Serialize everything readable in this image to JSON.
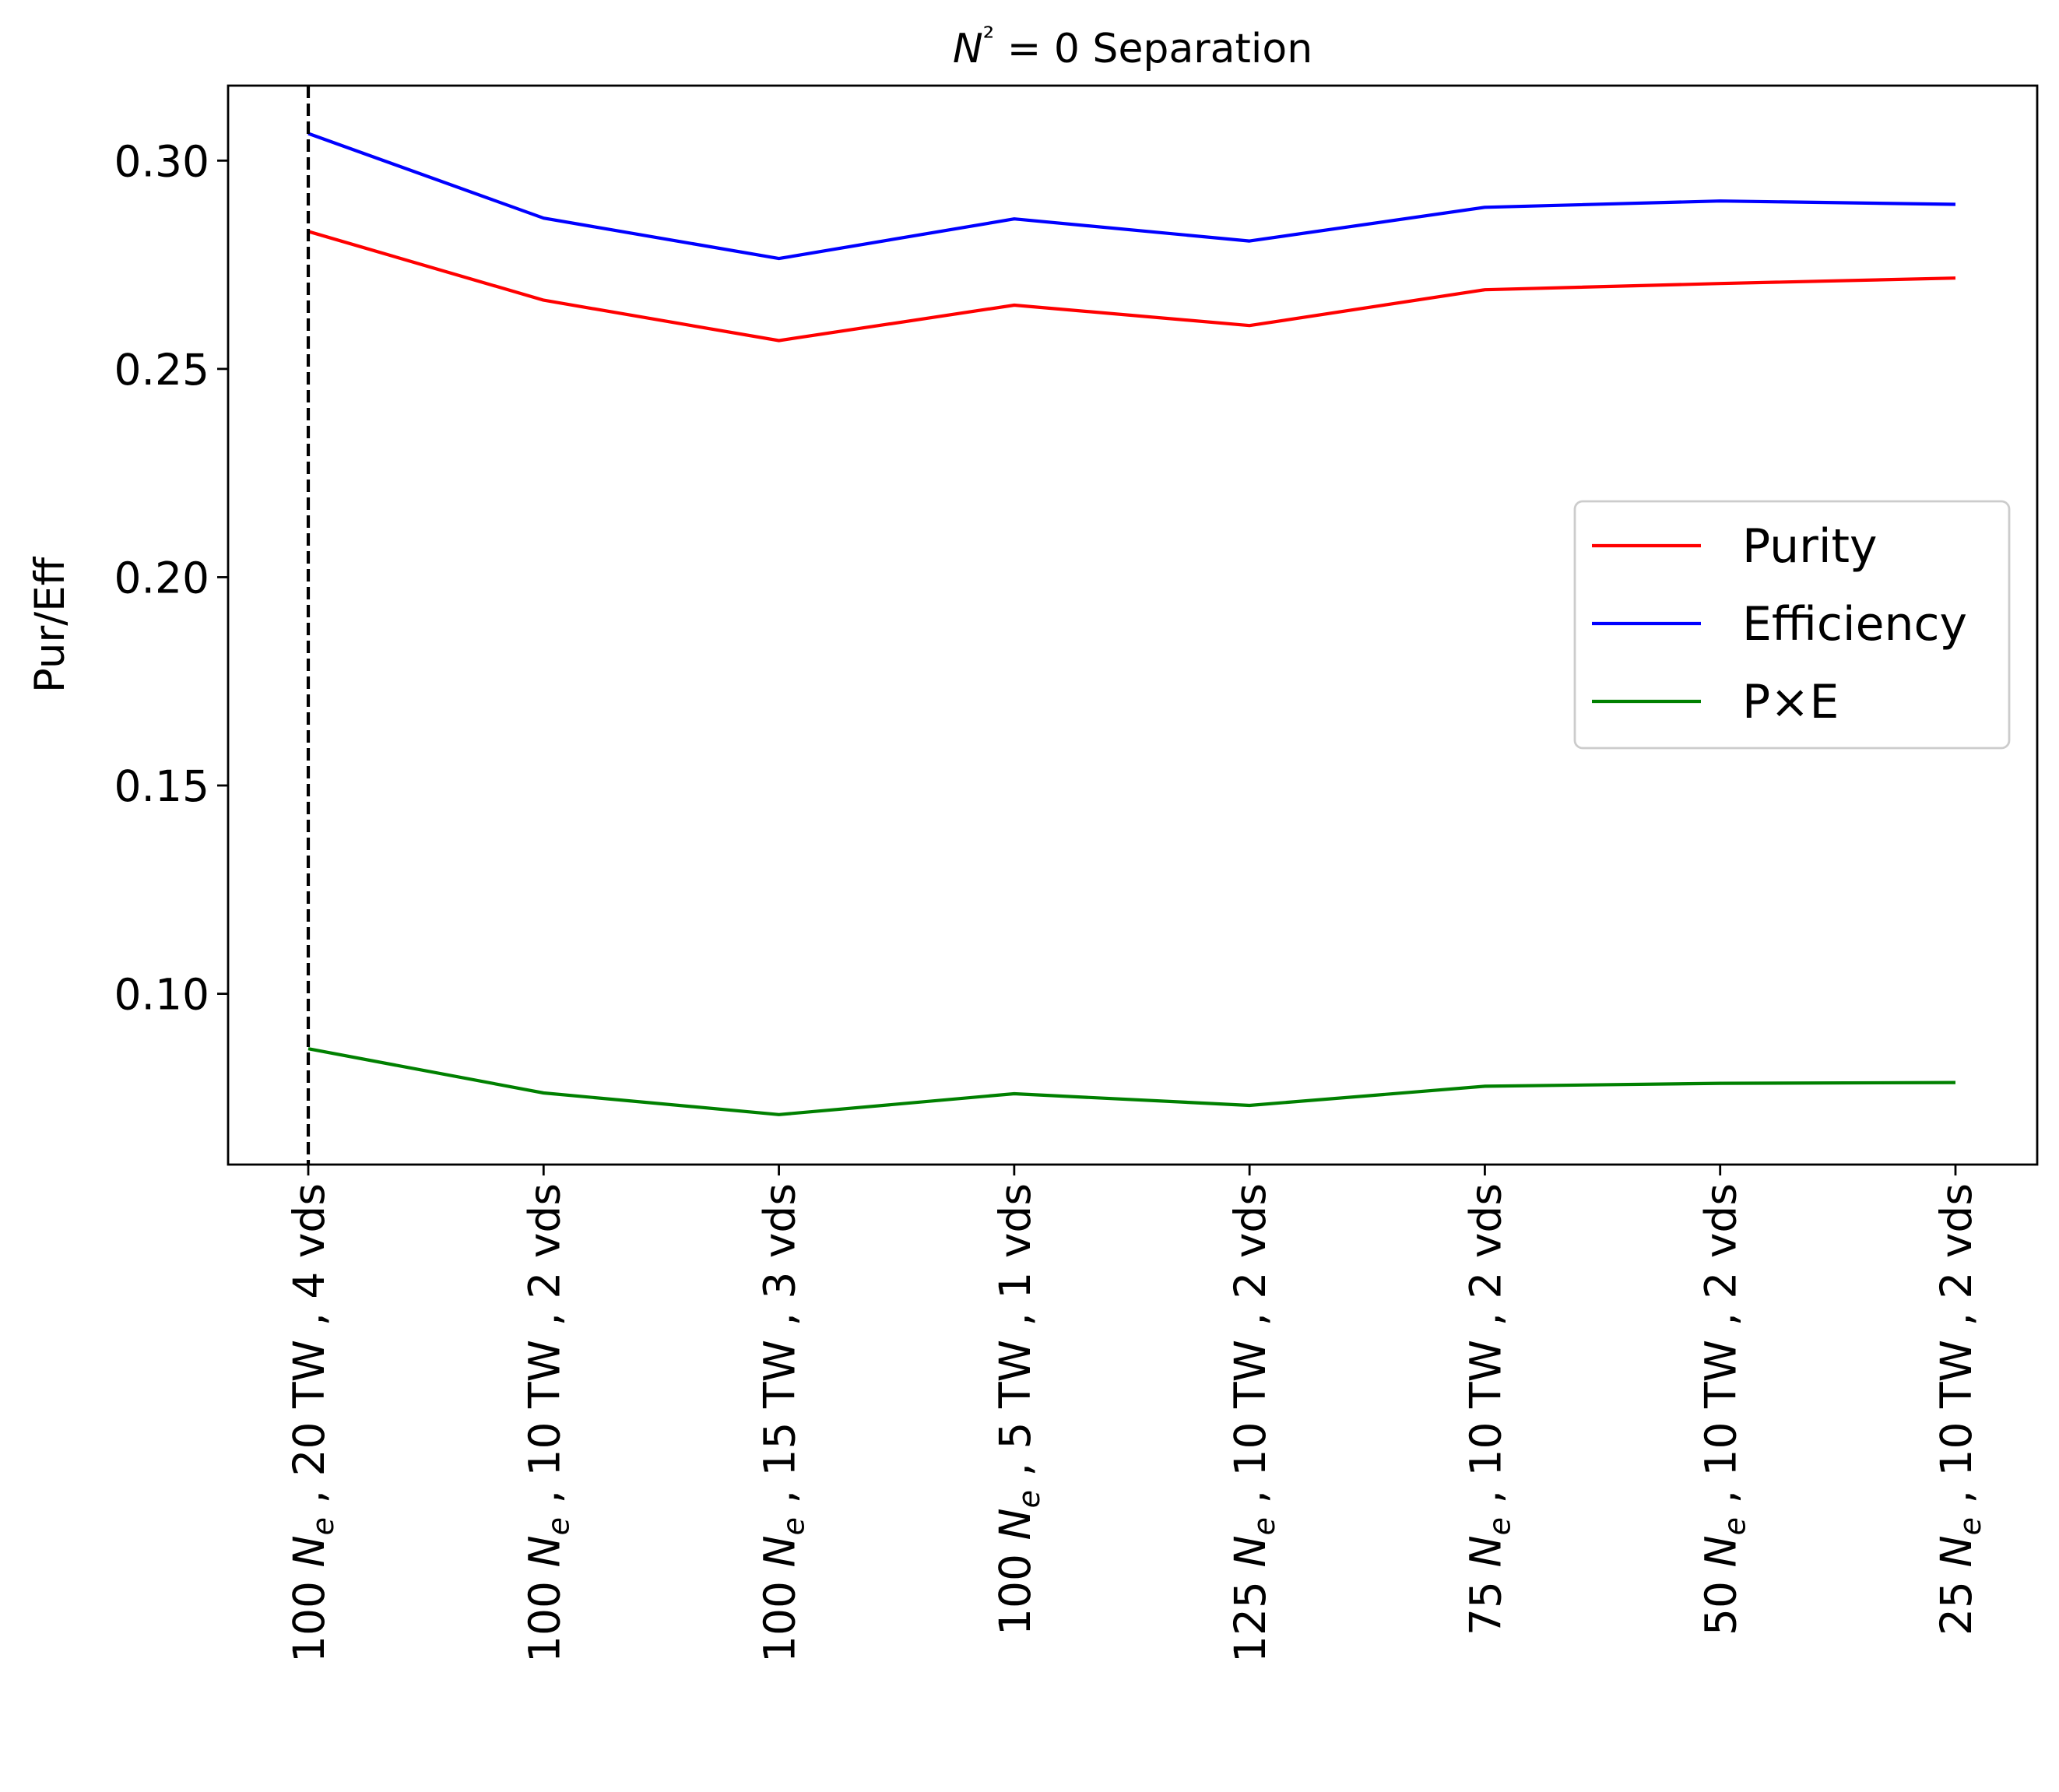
{
  "chart_data": {
    "type": "line",
    "title": "N² = 0 Separation",
    "xlabel": "",
    "ylabel": "Pur/Eff",
    "categories": [
      {
        "prefix": "100",
        "sub": "e",
        "suffix": ", 20 TW , 4 vds"
      },
      {
        "prefix": "100",
        "sub": "e",
        "suffix": ", 10 TW , 2 vds"
      },
      {
        "prefix": "100",
        "sub": "e",
        "suffix": ", 15 TW , 3 vds"
      },
      {
        "prefix": "100",
        "sub": "e",
        "suffix": ", 5 TW , 1 vds"
      },
      {
        "prefix": "125",
        "sub": "e",
        "suffix": ", 10 TW , 2 vds"
      },
      {
        "prefix": "75",
        "sub": "e",
        "suffix": ", 10 TW , 2 vds"
      },
      {
        "prefix": "50",
        "sub": "e",
        "suffix": ", 10 TW , 2 vds"
      },
      {
        "prefix": "25",
        "sub": "e",
        "suffix": ", 10 TW , 2 vds"
      }
    ],
    "series": [
      {
        "name": "Purity",
        "color": "#ff0000",
        "values": [
          0.283,
          0.2665,
          0.2568,
          0.2653,
          0.2604,
          0.269,
          0.2705,
          0.2718
        ]
      },
      {
        "name": "Efficiency",
        "color": "#0000ff",
        "values": [
          0.3065,
          0.2862,
          0.2765,
          0.286,
          0.2807,
          0.2888,
          0.2903,
          0.2895
        ]
      },
      {
        "name": "P×E",
        "color": "#008000",
        "values": [
          0.0868,
          0.0762,
          0.071,
          0.076,
          0.0732,
          0.0778,
          0.0785,
          0.0787
        ]
      }
    ],
    "yticks": [
      "0.10",
      "0.15",
      "0.20",
      "0.25",
      "0.30"
    ],
    "ylim": [
      0.059,
      0.318
    ],
    "vline_category_index": 0,
    "grid": false,
    "legend_placement": "center-right"
  }
}
